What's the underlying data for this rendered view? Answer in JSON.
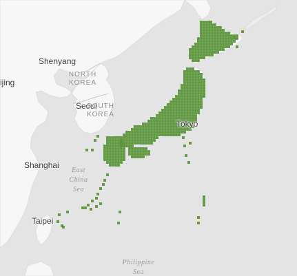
{
  "map": {
    "colors": {
      "sea": "#e4e4e4",
      "land": "#f7f7f7",
      "border": "#bdbdbd",
      "occurrence": "#5e9a3a",
      "occurrence_edge": "#4a8230"
    },
    "cities": {
      "shenyang": "Shenyang",
      "beijing": "ijing",
      "seoul": "Seoul",
      "tokyo": "Tokyo",
      "shanghai": "Shanghai",
      "taipei": "Taipei"
    },
    "countries": {
      "north_korea": [
        "NORTH",
        "KOREA"
      ],
      "south_korea": [
        "SOUTH",
        "KOREA"
      ]
    },
    "seas": {
      "east_china": [
        "East",
        "China",
        "Sea"
      ],
      "philippine": [
        "Philippine",
        "Sea"
      ]
    },
    "occurrence_layer": {
      "name": "occurrence-grid",
      "marker_shape": "small-square",
      "regions": [
        "Hokkaido",
        "Honshu",
        "Shikoku",
        "Kyushu",
        "Ryukyu Islands",
        "Izu Islands",
        "Ogasawara Islands"
      ]
    }
  }
}
